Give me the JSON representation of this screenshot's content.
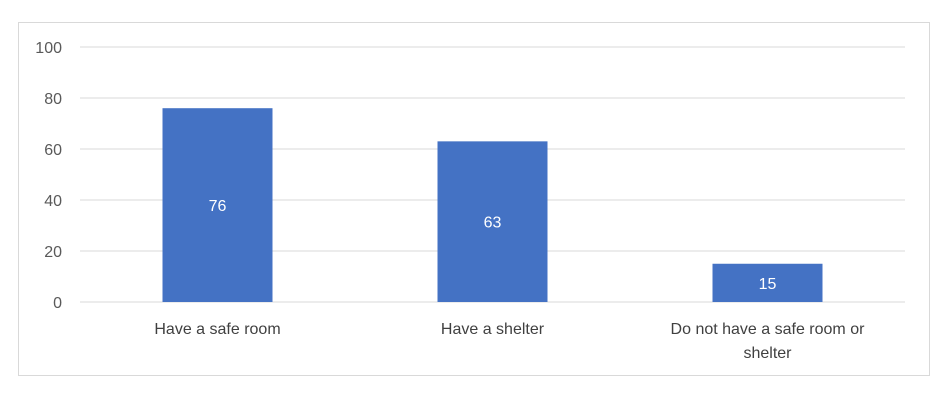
{
  "chart_data": {
    "type": "bar",
    "title": "",
    "xlabel": "",
    "ylabel": "",
    "categories": [
      [
        "Have a safe room"
      ],
      [
        "Have a shelter"
      ],
      [
        "Do not have a safe room or",
        "shelter"
      ]
    ],
    "values": [
      76,
      63,
      15
    ],
    "data_labels": [
      "76",
      "63",
      "15"
    ],
    "ylim": [
      0,
      100
    ],
    "yticks": [
      0,
      20,
      40,
      60,
      80,
      100
    ],
    "grid": true,
    "legend": "none",
    "colors": {
      "bar": "#4472c4",
      "grid": "#d9d9d9",
      "frame": "#d9d9d9",
      "tick_text": "#595959",
      "category_text": "#404040",
      "data_label_text": "#ffffff"
    }
  }
}
